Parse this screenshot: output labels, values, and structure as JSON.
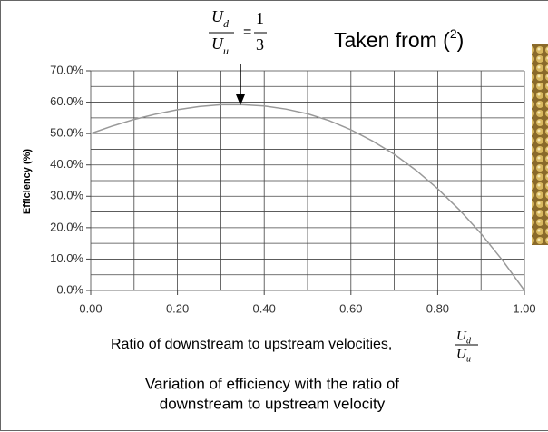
{
  "chart_data": {
    "type": "line",
    "y_label": "Efficiency (%)",
    "x_label": {
      "text": "Ratio of downstream to upstream velocities,",
      "numerator": "U",
      "numerator_sub": "d",
      "denominator": "U",
      "denominator_sub": "u"
    },
    "annotation": {
      "numerator": "U",
      "numerator_sub": "d",
      "denominator": "U",
      "denominator_sub": "u",
      "equals": "=",
      "value_num": "1",
      "value_den": "3"
    },
    "source": {
      "prefix": "Taken from (",
      "superscript": "2",
      "suffix": ")"
    },
    "caption": [
      "Variation of efficiency with the ratio of",
      "downstream to upstream velocity"
    ],
    "x": [
      0,
      0.05,
      0.1,
      0.15,
      0.2,
      0.25,
      0.3,
      0.35,
      0.4,
      0.45,
      0.5,
      0.55,
      0.6,
      0.65,
      0.7,
      0.75,
      0.8,
      0.85,
      0.9,
      0.95,
      1
    ],
    "series": [
      {
        "name": "Efficiency",
        "color": "#999999",
        "values": [
          50,
          52.4,
          54.5,
          56.2,
          57.6,
          58.6,
          59.2,
          59.2,
          58.8,
          57.8,
          56.3,
          54.1,
          51.2,
          47.6,
          43.4,
          38.3,
          32.4,
          25.7,
          18.1,
          9.5,
          0
        ]
      }
    ],
    "xlim": [
      0,
      1
    ],
    "ylim": [
      0,
      70
    ],
    "xticks": [
      {
        "value": 0,
        "label": "0.00"
      },
      {
        "value": 0.2,
        "label": "0.20"
      },
      {
        "value": 0.4,
        "label": "0.40"
      },
      {
        "value": 0.6,
        "label": "0.60"
      },
      {
        "value": 0.8,
        "label": "0.80"
      },
      {
        "value": 1,
        "label": "1.00"
      }
    ],
    "yticks": [
      {
        "value": 0,
        "label": "0.0%"
      },
      {
        "value": 10,
        "label": "10.0%"
      },
      {
        "value": 20,
        "label": "20.0%"
      },
      {
        "value": 30,
        "label": "30.0%"
      },
      {
        "value": 40,
        "label": "40.0%"
      },
      {
        "value": 50,
        "label": "50.0%"
      },
      {
        "value": 60,
        "label": "60.0%"
      },
      {
        "value": 70,
        "label": "70.0%"
      }
    ],
    "x_minor_grid": [
      0.1,
      0.3,
      0.5,
      0.7,
      0.9
    ],
    "y_minor_grid": [
      5,
      15,
      25,
      35,
      45,
      55,
      65
    ],
    "grid": true
  }
}
